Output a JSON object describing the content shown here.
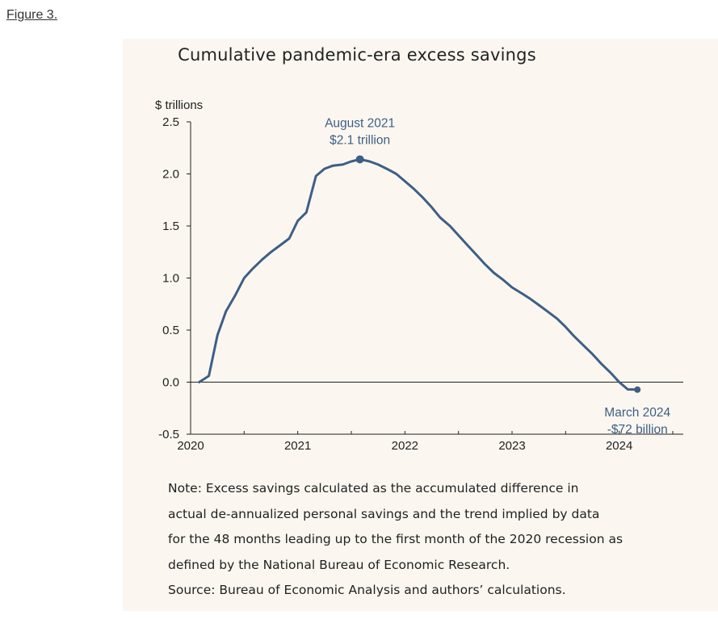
{
  "figure_label": "Figure 3.",
  "note": {
    "lines": [
      "Note: Excess savings calculated as the accumulated difference in",
      "actual de-annualized personal savings and the trend implied by data",
      "for the 48 months leading up to the first month of the 2020 recession as",
      "defined by the National Bureau of Economic Research."
    ],
    "source": "Source: Bureau of Economic Analysis and authors’ calculations."
  },
  "colors": {
    "line": "#3d5f86",
    "label": "#3d5f86",
    "axis": "#222222",
    "panel_bg": "#fbf7f0"
  },
  "chart_data": {
    "type": "line",
    "title": "Cumulative pandemic-era excess savings",
    "ylabel": "$ trillions",
    "xlabel": "",
    "ylim": [
      -0.5,
      2.5
    ],
    "yticks": [
      2.5,
      2.0,
      1.5,
      1.0,
      0.5,
      0.0,
      -0.5
    ],
    "ytick_labels": [
      "2.5",
      "2.0",
      "1.5",
      "1.0",
      "0.5",
      "0.0",
      "-0.5"
    ],
    "xlim": [
      2020.0,
      2024.5
    ],
    "xticks": [
      2020,
      2021,
      2022,
      2023,
      2024
    ],
    "xtick_labels": [
      "2020",
      "2021",
      "2022",
      "2023",
      "2024"
    ],
    "grid": false,
    "series": [
      {
        "x": [
          2020.08,
          2020.17,
          2020.25,
          2020.33,
          2020.42,
          2020.5,
          2020.58,
          2020.67,
          2020.75,
          2020.83,
          2020.92,
          2021.0,
          2021.08,
          2021.17,
          2021.25,
          2021.33,
          2021.42,
          2021.5,
          2021.58,
          2021.67,
          2021.75,
          2021.83,
          2021.92,
          2022.0,
          2022.08,
          2022.17,
          2022.25,
          2022.33,
          2022.42,
          2022.5,
          2022.58,
          2022.67,
          2022.75,
          2022.83,
          2022.92,
          2023.0,
          2023.08,
          2023.17,
          2023.25,
          2023.33,
          2023.42,
          2023.5,
          2023.58,
          2023.67,
          2023.75,
          2023.83,
          2023.92,
          2024.0,
          2024.08,
          2024.17
        ],
        "values": [
          0.0,
          0.06,
          0.45,
          0.68,
          0.84,
          1.0,
          1.09,
          1.18,
          1.25,
          1.31,
          1.38,
          1.55,
          1.63,
          1.98,
          2.05,
          2.08,
          2.09,
          2.12,
          2.14,
          2.12,
          2.09,
          2.05,
          2.0,
          1.93,
          1.86,
          1.77,
          1.68,
          1.58,
          1.5,
          1.41,
          1.32,
          1.22,
          1.13,
          1.05,
          0.98,
          0.91,
          0.86,
          0.8,
          0.74,
          0.68,
          0.61,
          0.53,
          0.44,
          0.35,
          0.27,
          0.18,
          0.09,
          0.0,
          -0.07,
          -0.072
        ]
      }
    ],
    "annotations": [
      {
        "x": 2021.58,
        "y": 2.14,
        "lines": [
          "August 2021",
          "$2.1 trillion"
        ],
        "position": "above"
      },
      {
        "x": 2024.17,
        "y": -0.072,
        "lines": [
          "March 2024",
          "-$72 billion"
        ],
        "position": "below"
      }
    ]
  }
}
